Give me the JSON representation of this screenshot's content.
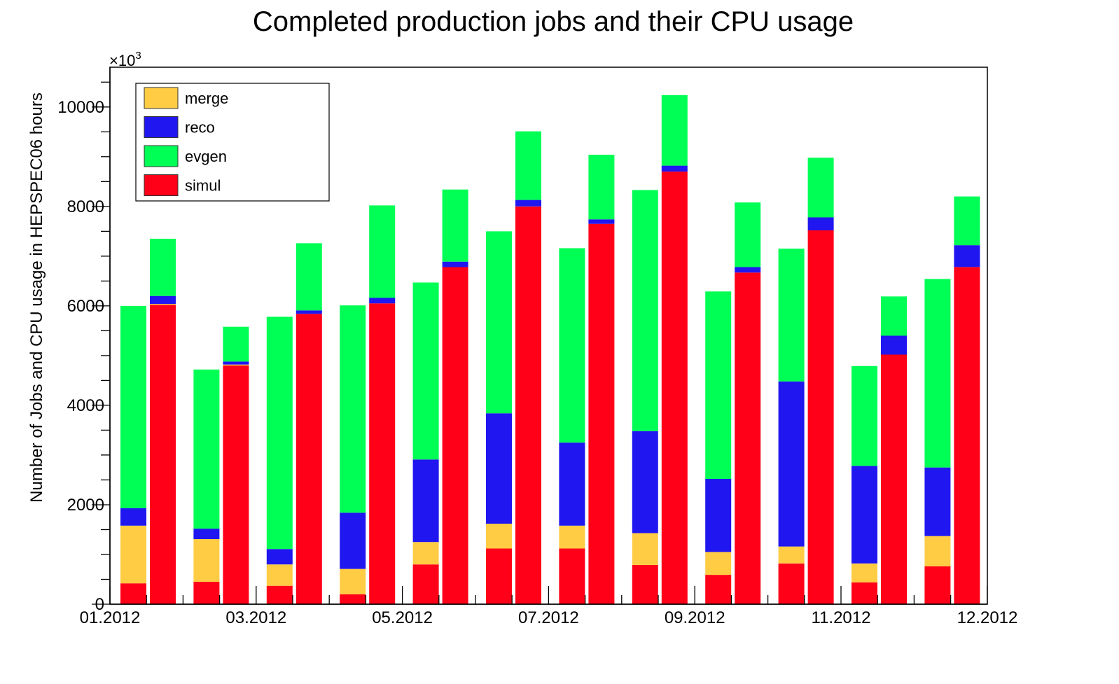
{
  "chart_data": {
    "type": "bar",
    "stacked": true,
    "title": "Completed production jobs and their CPU usage",
    "xlabel": "",
    "ylabel": "Number of Jobs and CPU usage in HEPSPEC06 hours",
    "y_multiplier_label": "×10",
    "y_multiplier_exponent": "3",
    "ylim": [
      0,
      10800
    ],
    "yticks": [
      "0",
      "2000",
      "4000",
      "6000",
      "8000",
      "10000"
    ],
    "x_tick_labels": [
      "01.2012",
      "03.2012",
      "05.2012",
      "07.2012",
      "09.2012",
      "11.2012",
      "12.2012"
    ],
    "months": [
      "01.2012",
      "02.2012",
      "03.2012",
      "04.2012",
      "05.2012",
      "06.2012",
      "07.2012",
      "08.2012",
      "09.2012",
      "10.2012",
      "11.2012",
      "12.2012"
    ],
    "series_order_bottom_to_top": [
      "simul",
      "merge",
      "reco",
      "evgen"
    ],
    "legend": [
      {
        "name": "merge",
        "color": "#ffcc44"
      },
      {
        "name": "reco",
        "color": "#2016f0"
      },
      {
        "name": "evgen",
        "color": "#00ff55"
      },
      {
        "name": "simul",
        "color": "#ff0018"
      }
    ],
    "series": [
      {
        "name": "simul",
        "color": "#ff0018",
        "jobs": [
          420,
          450,
          370,
          200,
          800,
          1120,
          1120,
          790,
          590,
          820,
          440,
          760
        ],
        "cpu": [
          6020,
          4800,
          5840,
          6050,
          6780,
          8000,
          7650,
          8700,
          6670,
          7520,
          5020,
          6780
        ]
      },
      {
        "name": "merge",
        "color": "#ffcc44",
        "jobs": [
          1160,
          860,
          430,
          510,
          450,
          500,
          460,
          640,
          460,
          340,
          380,
          610
        ],
        "cpu": [
          20,
          20,
          0,
          0,
          0,
          0,
          0,
          0,
          0,
          0,
          0,
          0
        ]
      },
      {
        "name": "reco",
        "color": "#2016f0",
        "jobs": [
          350,
          210,
          310,
          1130,
          1660,
          2220,
          1670,
          2050,
          1470,
          3320,
          1960,
          1380
        ],
        "cpu": [
          160,
          60,
          70,
          110,
          110,
          130,
          90,
          120,
          110,
          260,
          380,
          440
        ]
      },
      {
        "name": "evgen",
        "color": "#00ff55",
        "jobs": [
          4070,
          3200,
          4670,
          4170,
          3560,
          3660,
          3910,
          4850,
          3770,
          2670,
          2010,
          3790
        ],
        "cpu": [
          1150,
          700,
          1350,
          1860,
          1450,
          1380,
          1300,
          1420,
          1300,
          1200,
          790,
          980
        ]
      }
    ]
  }
}
